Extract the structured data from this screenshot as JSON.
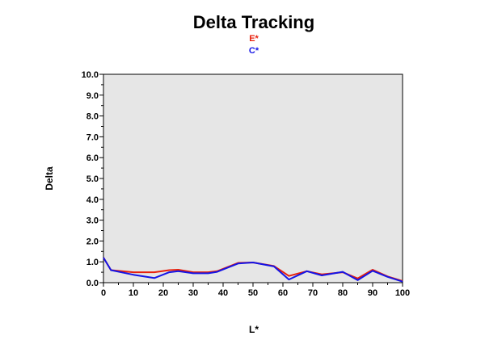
{
  "chart_data": {
    "type": "line",
    "title": "Delta Tracking",
    "xlabel": "L*",
    "ylabel": "Delta",
    "xlim": [
      0,
      100
    ],
    "ylim": [
      0,
      10
    ],
    "xticks": [
      "0",
      "10",
      "20",
      "30",
      "40",
      "50",
      "60",
      "70",
      "80",
      "90",
      "100"
    ],
    "yticks": [
      "0.0",
      "1.0",
      "2.0",
      "3.0",
      "4.0",
      "5.0",
      "6.0",
      "7.0",
      "8.0",
      "9.0",
      "10.0"
    ],
    "grid": false,
    "plot_background": "#e6e6e6",
    "legend_position": "top-center",
    "series": [
      {
        "name": "E*",
        "color": "#e8200c",
        "x": [
          0,
          2.5,
          10,
          17,
          22,
          25,
          30,
          35,
          38,
          45,
          50,
          57,
          62,
          68,
          73,
          80,
          85,
          90,
          95,
          100
        ],
        "y": [
          1.2,
          0.6,
          0.5,
          0.5,
          0.6,
          0.62,
          0.5,
          0.5,
          0.55,
          0.95,
          0.97,
          0.8,
          0.32,
          0.55,
          0.4,
          0.5,
          0.2,
          0.62,
          0.3,
          0.08
        ]
      },
      {
        "name": "C*",
        "color": "#1414e6",
        "x": [
          0,
          2.5,
          10,
          17,
          22,
          25,
          30,
          35,
          38,
          45,
          50,
          57,
          62,
          68,
          73,
          80,
          85,
          90,
          95,
          100
        ],
        "y": [
          1.2,
          0.6,
          0.38,
          0.22,
          0.5,
          0.55,
          0.45,
          0.45,
          0.52,
          0.92,
          0.97,
          0.78,
          0.15,
          0.55,
          0.35,
          0.52,
          0.12,
          0.57,
          0.28,
          0.05
        ]
      }
    ]
  }
}
